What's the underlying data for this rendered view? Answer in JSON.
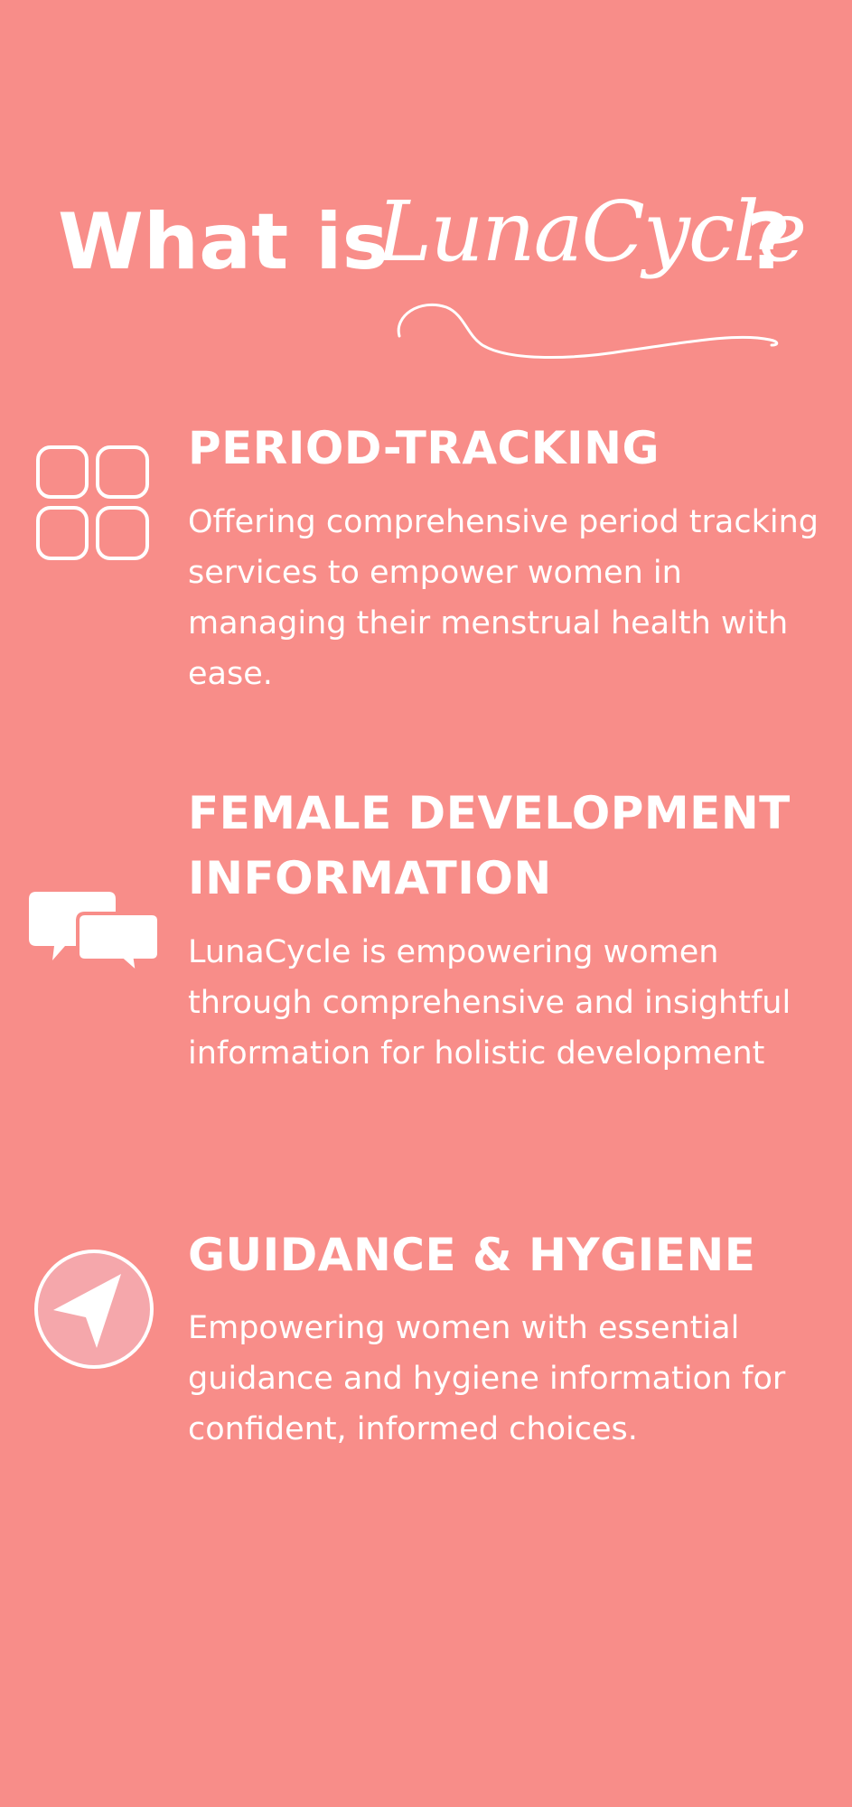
{
  "colors": {
    "background": "#F88D89",
    "foreground": "#FFFFFF",
    "icon_fill_soft": "#F5A7AB"
  },
  "header": {
    "title_prefix": "What is",
    "brand": "LunaCycle",
    "title_suffix": "?"
  },
  "features": [
    {
      "icon": "grid-icon",
      "title": "PERIOD-TRACKING",
      "description": "Offering comprehensive period tracking services to empower women in managing their menstrual health with ease."
    },
    {
      "icon": "chat-bubbles-icon",
      "title": "FEMALE DEVELOPMENT INFORMATION",
      "description": "LunaCycle is empowering women through comprehensive and insightful information for holistic development"
    },
    {
      "icon": "navigation-arrow-icon",
      "title": "GUIDANCE & HYGIENE",
      "description": "Empowering women with essential guidance and hygiene information for confident, informed choices."
    }
  ]
}
